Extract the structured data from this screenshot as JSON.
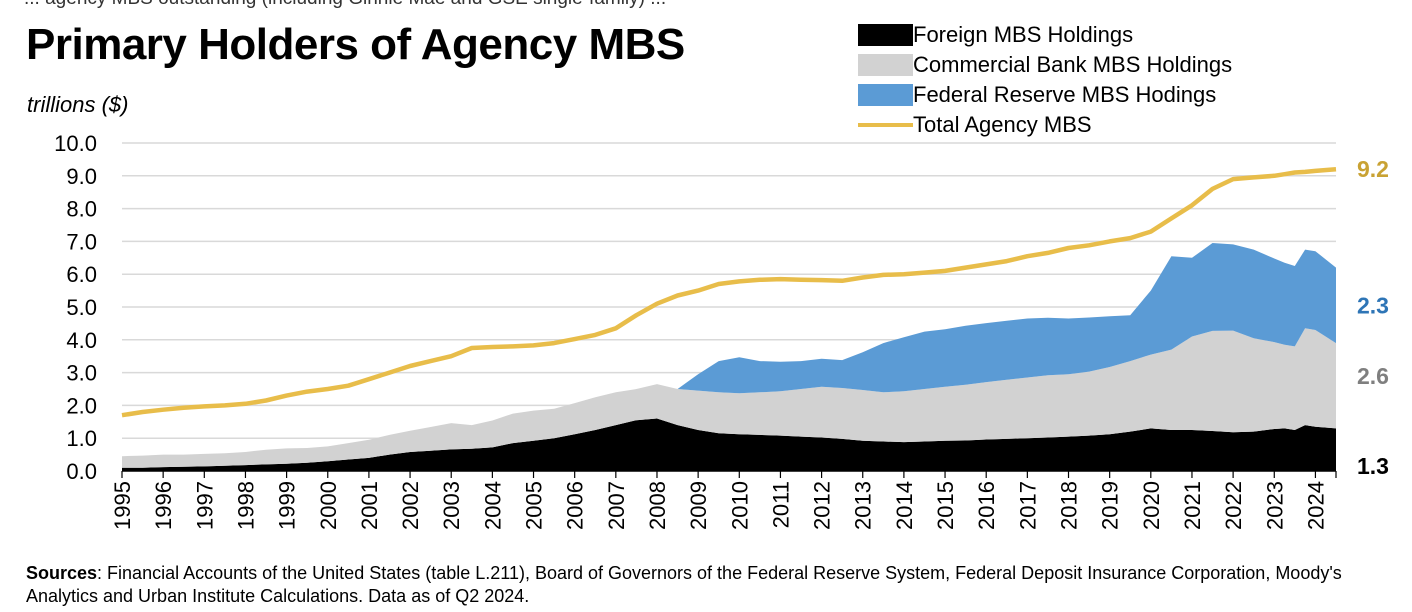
{
  "top_fragment": "... agency MBS outstanding (including Ginnie Mae and GSE single-family) ...",
  "title": "Primary Holders of Agency MBS",
  "unit_label": "trillions ($)",
  "legend": [
    {
      "label": "Foreign MBS Holdings",
      "color": "#000000",
      "kind": "area"
    },
    {
      "label": "Commercial Bank MBS Holdings",
      "color": "#d2d2d2",
      "kind": "area"
    },
    {
      "label": "Federal Reserve MBS Hodings",
      "color": "#5b9bd5",
      "kind": "area"
    },
    {
      "label": "Total Agency MBS",
      "color": "#e8bd4a",
      "kind": "line"
    }
  ],
  "end_labels": [
    {
      "text": "9.2",
      "value": 9.2,
      "color": "#c9a233"
    },
    {
      "text": "2.3",
      "value": 2.3,
      "color": "#2e75b6"
    },
    {
      "text": "2.6",
      "value": 2.6,
      "color": "#7f7f7f"
    },
    {
      "text": "1.3",
      "value": 1.3,
      "color": "#000000"
    }
  ],
  "sources_label": "Sources",
  "sources_text": ": Financial Accounts of the United States (table L.211), Board of Governors of the Federal Reserve System, Federal Deposit Insurance Corporation, Moody's Analytics and Urban Institute Calculations. Data as of Q2 2024.",
  "chart_data": {
    "type": "area",
    "title": "Primary Holders of Agency MBS",
    "ylabel": "trillions ($)",
    "xlabel": "",
    "ylim": [
      0,
      10
    ],
    "yticks": [
      "0.0",
      "1.0",
      "2.0",
      "3.0",
      "4.0",
      "5.0",
      "6.0",
      "7.0",
      "8.0",
      "9.0",
      "10.0"
    ],
    "xticks": [
      "1995",
      "1996",
      "1997",
      "1998",
      "1999",
      "2000",
      "2001",
      "2002",
      "2003",
      "2004",
      "2005",
      "2006",
      "2007",
      "2008",
      "2009",
      "2010",
      "2011",
      "2012",
      "2013",
      "2014",
      "2015",
      "2016",
      "2017",
      "2018",
      "2019",
      "2020",
      "2021",
      "2022",
      "2023",
      "2024"
    ],
    "xlim": [
      1995,
      2024.5
    ],
    "grid": "horizontal",
    "legend_position": "top-right",
    "x": [
      1995,
      1995.5,
      1996,
      1996.5,
      1997,
      1997.5,
      1998,
      1998.5,
      1999,
      1999.5,
      2000,
      2000.5,
      2001,
      2001.5,
      2002,
      2002.5,
      2003,
      2003.5,
      2004,
      2004.5,
      2005,
      2005.5,
      2006,
      2006.5,
      2007,
      2007.5,
      2008,
      2008.5,
      2009,
      2009.5,
      2010,
      2010.5,
      2011,
      2011.5,
      2012,
      2012.5,
      2013,
      2013.5,
      2014,
      2014.5,
      2015,
      2015.5,
      2016,
      2016.5,
      2017,
      2017.5,
      2018,
      2018.5,
      2019,
      2019.5,
      2020,
      2020.5,
      2021,
      2021.5,
      2022,
      2022.5,
      2023,
      2023.25,
      2023.5,
      2023.75,
      2024,
      2024.5
    ],
    "series": [
      {
        "name": "Foreign MBS Holdings",
        "stack": true,
        "values": [
          0.1,
          0.1,
          0.12,
          0.13,
          0.14,
          0.16,
          0.18,
          0.2,
          0.22,
          0.25,
          0.3,
          0.35,
          0.4,
          0.5,
          0.58,
          0.62,
          0.66,
          0.68,
          0.72,
          0.85,
          0.92,
          1.0,
          1.12,
          1.25,
          1.4,
          1.55,
          1.6,
          1.4,
          1.25,
          1.15,
          1.12,
          1.1,
          1.08,
          1.05,
          1.02,
          0.98,
          0.92,
          0.9,
          0.88,
          0.9,
          0.92,
          0.93,
          0.96,
          0.98,
          1.0,
          1.02,
          1.05,
          1.08,
          1.12,
          1.2,
          1.3,
          1.25,
          1.25,
          1.22,
          1.18,
          1.2,
          1.28,
          1.3,
          1.25,
          1.4,
          1.35,
          1.3
        ]
      },
      {
        "name": "Commercial Bank MBS Holdings",
        "stack": true,
        "values": [
          0.35,
          0.37,
          0.38,
          0.37,
          0.38,
          0.38,
          0.4,
          0.45,
          0.47,
          0.45,
          0.45,
          0.5,
          0.55,
          0.6,
          0.65,
          0.72,
          0.8,
          0.72,
          0.82,
          0.9,
          0.92,
          0.9,
          0.95,
          1.0,
          1.0,
          0.95,
          1.05,
          1.1,
          1.2,
          1.25,
          1.25,
          1.3,
          1.35,
          1.45,
          1.55,
          1.55,
          1.55,
          1.5,
          1.55,
          1.6,
          1.65,
          1.7,
          1.75,
          1.8,
          1.85,
          1.9,
          1.9,
          1.95,
          2.05,
          2.15,
          2.25,
          2.45,
          2.85,
          3.05,
          3.1,
          2.85,
          2.65,
          2.55,
          2.55,
          2.95,
          2.95,
          2.6
        ]
      },
      {
        "name": "Federal Reserve MBS Hodings",
        "stack": true,
        "values": [
          0,
          0,
          0,
          0,
          0,
          0,
          0,
          0,
          0,
          0,
          0,
          0,
          0,
          0,
          0,
          0,
          0,
          0,
          0,
          0,
          0,
          0,
          0,
          0,
          0,
          0,
          0,
          0,
          0.5,
          0.95,
          1.1,
          0.95,
          0.9,
          0.85,
          0.85,
          0.85,
          1.15,
          1.5,
          1.65,
          1.75,
          1.75,
          1.8,
          1.8,
          1.8,
          1.8,
          1.75,
          1.7,
          1.65,
          1.55,
          1.4,
          1.95,
          2.85,
          2.4,
          2.68,
          2.63,
          2.7,
          2.55,
          2.5,
          2.45,
          2.4,
          2.4,
          2.3
        ]
      },
      {
        "name": "Total Agency MBS",
        "stack": false,
        "values": [
          1.7,
          1.8,
          1.87,
          1.93,
          1.97,
          2.0,
          2.05,
          2.15,
          2.3,
          2.42,
          2.5,
          2.6,
          2.8,
          3.0,
          3.2,
          3.35,
          3.5,
          3.75,
          3.78,
          3.8,
          3.83,
          3.9,
          4.02,
          4.15,
          4.35,
          4.75,
          5.1,
          5.35,
          5.5,
          5.7,
          5.78,
          5.83,
          5.85,
          5.83,
          5.82,
          5.8,
          5.9,
          5.98,
          6.0,
          6.05,
          6.1,
          6.2,
          6.3,
          6.4,
          6.55,
          6.65,
          6.8,
          6.88,
          7.0,
          7.1,
          7.3,
          7.7,
          8.1,
          8.6,
          8.9,
          8.95,
          9.0,
          9.05,
          9.1,
          9.12,
          9.15,
          9.2
        ]
      }
    ]
  }
}
